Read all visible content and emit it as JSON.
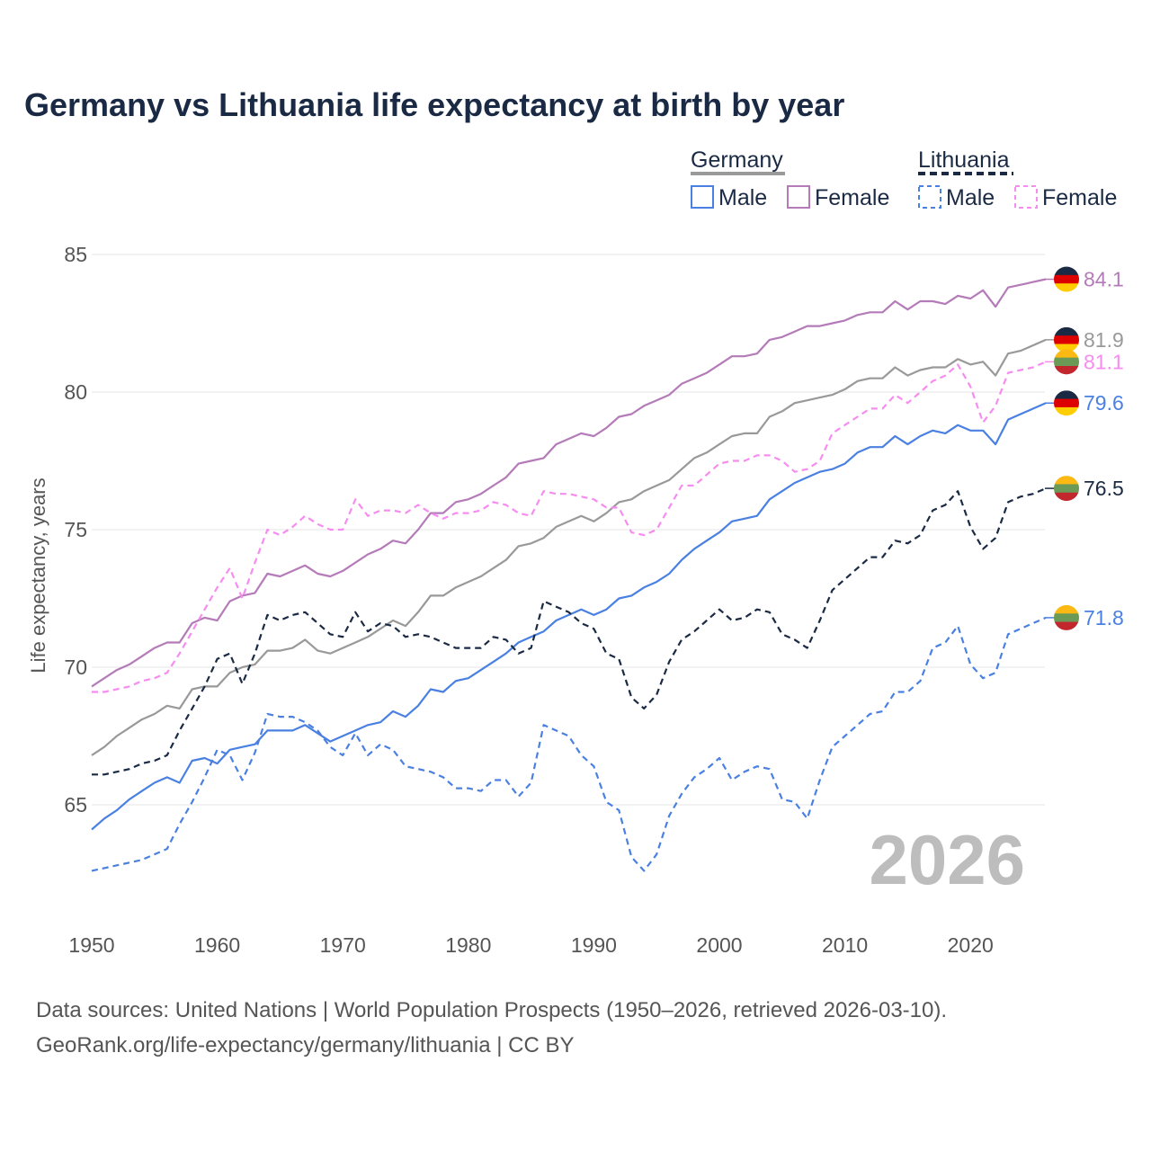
{
  "chart_data": {
    "type": "line",
    "title": "Germany vs Lithuania life expectancy at birth by year",
    "xlabel": "",
    "ylabel": "Life expectancy, years",
    "xlim": [
      1950,
      2026
    ],
    "ylim": [
      61.5,
      85
    ],
    "x_ticks": [
      1950,
      1960,
      1970,
      1980,
      1990,
      2000,
      2010,
      2020
    ],
    "y_ticks": [
      65,
      70,
      75,
      80,
      85
    ],
    "grid": true,
    "watermark_year": "2026",
    "legend": {
      "placement": "top-right",
      "groups": [
        {
          "label": "Germany",
          "items": [
            "Male",
            "Female"
          ]
        },
        {
          "label": "Lithuania",
          "items": [
            "Male",
            "Female"
          ]
        }
      ]
    },
    "x_start": 1950,
    "series": [
      {
        "name": "Germany Female",
        "country": "Germany",
        "dashed": false,
        "color": "#b47bb8",
        "flag": "germany",
        "end_label": "84.1",
        "values": [
          69.3,
          69.6,
          69.9,
          70.1,
          70.4,
          70.7,
          70.9,
          70.9,
          71.6,
          71.8,
          71.7,
          72.4,
          72.6,
          72.7,
          73.4,
          73.3,
          73.5,
          73.7,
          73.4,
          73.3,
          73.5,
          73.8,
          74.1,
          74.3,
          74.6,
          74.5,
          75.0,
          75.6,
          75.6,
          76.0,
          76.1,
          76.3,
          76.6,
          76.9,
          77.4,
          77.5,
          77.6,
          78.1,
          78.3,
          78.5,
          78.4,
          78.7,
          79.1,
          79.2,
          79.5,
          79.7,
          79.9,
          80.3,
          80.5,
          80.7,
          81.0,
          81.3,
          81.3,
          81.4,
          81.9,
          82.0,
          82.2,
          82.4,
          82.4,
          82.5,
          82.6,
          82.8,
          82.9,
          82.9,
          83.3,
          83.0,
          83.3,
          83.3,
          83.2,
          83.5,
          83.4,
          83.7,
          83.1,
          83.8,
          83.9,
          84.0,
          84.1
        ]
      },
      {
        "name": "Germany Total",
        "country": "Germany",
        "dashed": false,
        "color": "#999999",
        "flag": "germany",
        "end_label": "81.9",
        "values": [
          66.8,
          67.1,
          67.5,
          67.8,
          68.1,
          68.3,
          68.6,
          68.5,
          69.2,
          69.3,
          69.3,
          69.8,
          70.0,
          70.1,
          70.6,
          70.6,
          70.7,
          71.0,
          70.6,
          70.5,
          70.7,
          70.9,
          71.1,
          71.4,
          71.7,
          71.5,
          72.0,
          72.6,
          72.6,
          72.9,
          73.1,
          73.3,
          73.6,
          73.9,
          74.4,
          74.5,
          74.7,
          75.1,
          75.3,
          75.5,
          75.3,
          75.6,
          76.0,
          76.1,
          76.4,
          76.6,
          76.8,
          77.2,
          77.6,
          77.8,
          78.1,
          78.4,
          78.5,
          78.5,
          79.1,
          79.3,
          79.6,
          79.7,
          79.8,
          79.9,
          80.1,
          80.4,
          80.5,
          80.5,
          80.9,
          80.6,
          80.8,
          80.9,
          80.9,
          81.2,
          81.0,
          81.1,
          80.6,
          81.4,
          81.5,
          81.7,
          81.9
        ]
      },
      {
        "name": "Lithuania Female",
        "country": "Lithuania",
        "dashed": true,
        "color": "#f78cf0",
        "flag": "lithuania",
        "end_label": "81.1",
        "values": [
          69.1,
          69.1,
          69.2,
          69.3,
          69.5,
          69.6,
          69.8,
          70.5,
          71.3,
          72.1,
          72.9,
          73.6,
          72.5,
          73.8,
          75.0,
          74.8,
          75.1,
          75.5,
          75.2,
          75.0,
          75.0,
          76.1,
          75.5,
          75.7,
          75.7,
          75.6,
          75.9,
          75.6,
          75.4,
          75.6,
          75.6,
          75.7,
          76.0,
          75.9,
          75.6,
          75.5,
          76.4,
          76.3,
          76.3,
          76.2,
          76.1,
          75.8,
          75.8,
          74.9,
          74.8,
          75.0,
          75.8,
          76.6,
          76.6,
          77.0,
          77.4,
          77.5,
          77.5,
          77.7,
          77.7,
          77.5,
          77.1,
          77.2,
          77.5,
          78.5,
          78.8,
          79.1,
          79.4,
          79.4,
          79.9,
          79.6,
          80.0,
          80.4,
          80.6,
          81.0,
          80.2,
          78.9,
          79.5,
          80.7,
          80.8,
          80.9,
          81.1
        ]
      },
      {
        "name": "Germany Male",
        "country": "Germany",
        "dashed": false,
        "color": "#4a80e2",
        "flag": "germany",
        "end_label": "79.6",
        "values": [
          64.1,
          64.5,
          64.8,
          65.2,
          65.5,
          65.8,
          66.0,
          65.8,
          66.6,
          66.7,
          66.5,
          67.0,
          67.1,
          67.2,
          67.7,
          67.7,
          67.7,
          67.9,
          67.6,
          67.3,
          67.5,
          67.7,
          67.9,
          68.0,
          68.4,
          68.2,
          68.6,
          69.2,
          69.1,
          69.5,
          69.6,
          69.9,
          70.2,
          70.5,
          70.9,
          71.1,
          71.3,
          71.7,
          71.9,
          72.1,
          71.9,
          72.1,
          72.5,
          72.6,
          72.9,
          73.1,
          73.4,
          73.9,
          74.3,
          74.6,
          74.9,
          75.3,
          75.4,
          75.5,
          76.1,
          76.4,
          76.7,
          76.9,
          77.1,
          77.2,
          77.4,
          77.8,
          78.0,
          78.0,
          78.4,
          78.1,
          78.4,
          78.6,
          78.5,
          78.8,
          78.6,
          78.6,
          78.1,
          79.0,
          79.2,
          79.4,
          79.6
        ]
      },
      {
        "name": "Lithuania Total",
        "country": "Lithuania",
        "dashed": true,
        "color": "#1b2a44",
        "flag": "lithuania",
        "end_label": "76.5",
        "values": [
          66.1,
          66.1,
          66.2,
          66.3,
          66.5,
          66.6,
          66.8,
          67.7,
          68.5,
          69.3,
          70.3,
          70.5,
          69.4,
          70.5,
          71.9,
          71.7,
          71.9,
          72.0,
          71.6,
          71.2,
          71.1,
          72.0,
          71.3,
          71.6,
          71.5,
          71.1,
          71.2,
          71.1,
          70.9,
          70.7,
          70.7,
          70.7,
          71.1,
          71.0,
          70.5,
          70.7,
          72.4,
          72.2,
          72.0,
          71.6,
          71.4,
          70.5,
          70.3,
          68.9,
          68.5,
          69.0,
          70.2,
          71.0,
          71.3,
          71.7,
          72.1,
          71.7,
          71.8,
          72.1,
          72.0,
          71.2,
          71.0,
          70.7,
          71.7,
          72.8,
          73.2,
          73.6,
          74.0,
          74.0,
          74.6,
          74.5,
          74.8,
          75.7,
          75.9,
          76.4,
          75.1,
          74.3,
          74.7,
          76.0,
          76.2,
          76.3,
          76.5
        ]
      },
      {
        "name": "Lithuania Male",
        "country": "Lithuania",
        "dashed": true,
        "color": "#4a80e2",
        "flag": "lithuania",
        "end_label": "71.8",
        "values": [
          62.6,
          62.7,
          62.8,
          62.9,
          63.0,
          63.2,
          63.4,
          64.3,
          65.1,
          66.0,
          67.0,
          66.8,
          65.9,
          66.9,
          68.3,
          68.2,
          68.2,
          68.0,
          67.7,
          67.1,
          66.8,
          67.6,
          66.8,
          67.2,
          67.0,
          66.4,
          66.3,
          66.2,
          66.0,
          65.6,
          65.6,
          65.5,
          65.9,
          65.9,
          65.3,
          65.8,
          67.9,
          67.7,
          67.5,
          66.8,
          66.4,
          65.1,
          64.8,
          63.1,
          62.6,
          63.2,
          64.6,
          65.4,
          66.0,
          66.3,
          66.7,
          65.9,
          66.2,
          66.4,
          66.3,
          65.2,
          65.1,
          64.5,
          65.9,
          67.1,
          67.5,
          67.9,
          68.3,
          68.4,
          69.1,
          69.1,
          69.5,
          70.7,
          70.9,
          71.5,
          70.1,
          69.6,
          69.8,
          71.2,
          71.4,
          71.6,
          71.8
        ]
      }
    ],
    "legend_colors": {
      "germany": "#999999",
      "lithuania": "#1b2a44",
      "male": "#4a80e2",
      "female_de": "#b47bb8",
      "female_lt": "#f78cf0"
    },
    "source_line1": "Data sources: United Nations | World Population Prospects (1950–2026, retrieved 2026-03-10).",
    "source_line2": "GeoRank.org/life-expectancy/germany/lithuania | CC BY"
  }
}
